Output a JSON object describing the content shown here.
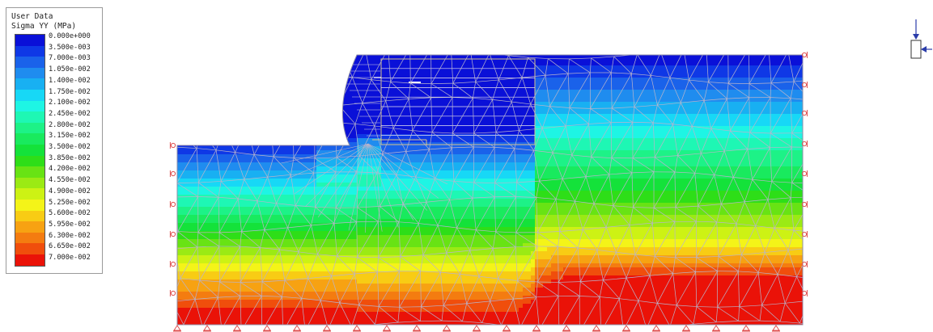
{
  "legend": {
    "title": "User Data",
    "subtitle": "Sigma YY (MPa)",
    "entries": [
      {
        "value": "0.000e+000",
        "color": "#0a10d8"
      },
      {
        "value": "3.500e-003",
        "color": "#0f38e6"
      },
      {
        "value": "7.000e-003",
        "color": "#1a62ea"
      },
      {
        "value": "1.050e-002",
        "color": "#1f8cef"
      },
      {
        "value": "1.400e-002",
        "color": "#18b0f2"
      },
      {
        "value": "1.750e-002",
        "color": "#17d8f6"
      },
      {
        "value": "2.100e-002",
        "color": "#1ef5e4"
      },
      {
        "value": "2.450e-002",
        "color": "#1ef7b4"
      },
      {
        "value": "2.800e-002",
        "color": "#1df287"
      },
      {
        "value": "3.150e-002",
        "color": "#19ea5e"
      },
      {
        "value": "3.500e-002",
        "color": "#14e23a"
      },
      {
        "value": "3.850e-002",
        "color": "#2ede18"
      },
      {
        "value": "4.200e-002",
        "color": "#68e314"
      },
      {
        "value": "4.550e-002",
        "color": "#9bea14"
      },
      {
        "value": "4.900e-002",
        "color": "#cdf214"
      },
      {
        "value": "5.250e-002",
        "color": "#f4f418"
      },
      {
        "value": "5.600e-002",
        "color": "#f8cc14"
      },
      {
        "value": "5.950e-002",
        "color": "#f7a212"
      },
      {
        "value": "6.300e-002",
        "color": "#f47c10"
      },
      {
        "value": "6.650e-002",
        "color": "#f04e0c"
      },
      {
        "value": "7.000e-002",
        "color": "#ea1208"
      }
    ]
  },
  "mesh_color": "#b9b4cb",
  "support_color": "#e05050",
  "axis_icon_color": "#2a3caa"
}
